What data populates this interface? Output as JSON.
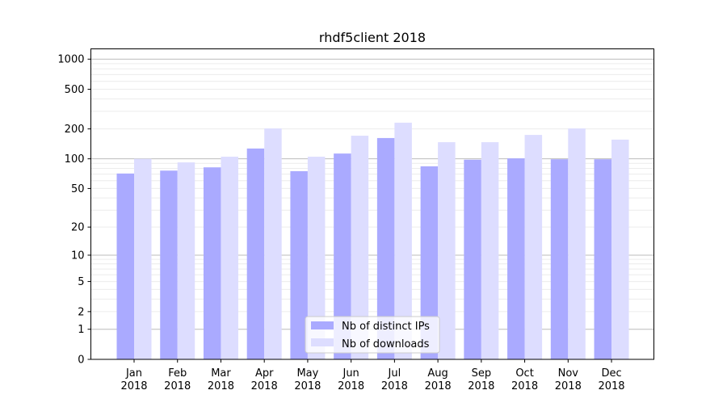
{
  "chart_data": {
    "type": "bar",
    "title": "rhdf5client 2018",
    "xlabel": "",
    "ylabel": "",
    "yscale": "log(y+1)",
    "ylim": [
      0,
      1200
    ],
    "yticks": [
      0,
      1,
      2,
      5,
      10,
      20,
      50,
      100,
      200,
      500,
      1000
    ],
    "grid": true,
    "legend_placement": "lower center",
    "categories": [
      "Jan\n2018",
      "Feb\n2018",
      "Mar\n2018",
      "Apr\n2018",
      "May\n2018",
      "Jun\n2018",
      "Jul\n2018",
      "Aug\n2018",
      "Sep\n2018",
      "Oct\n2018",
      "Nov\n2018",
      "Dec\n2018"
    ],
    "series": [
      {
        "name": "Nb of distinct IPs",
        "color": "#aaaaff",
        "values": [
          71,
          76,
          82,
          127,
          75,
          113,
          162,
          84,
          98,
          101,
          99,
          99
        ]
      },
      {
        "name": "Nb of downloads",
        "color": "#ddddff",
        "values": [
          100,
          92,
          105,
          202,
          105,
          171,
          231,
          147,
          147,
          174,
          202,
          156
        ]
      }
    ]
  }
}
